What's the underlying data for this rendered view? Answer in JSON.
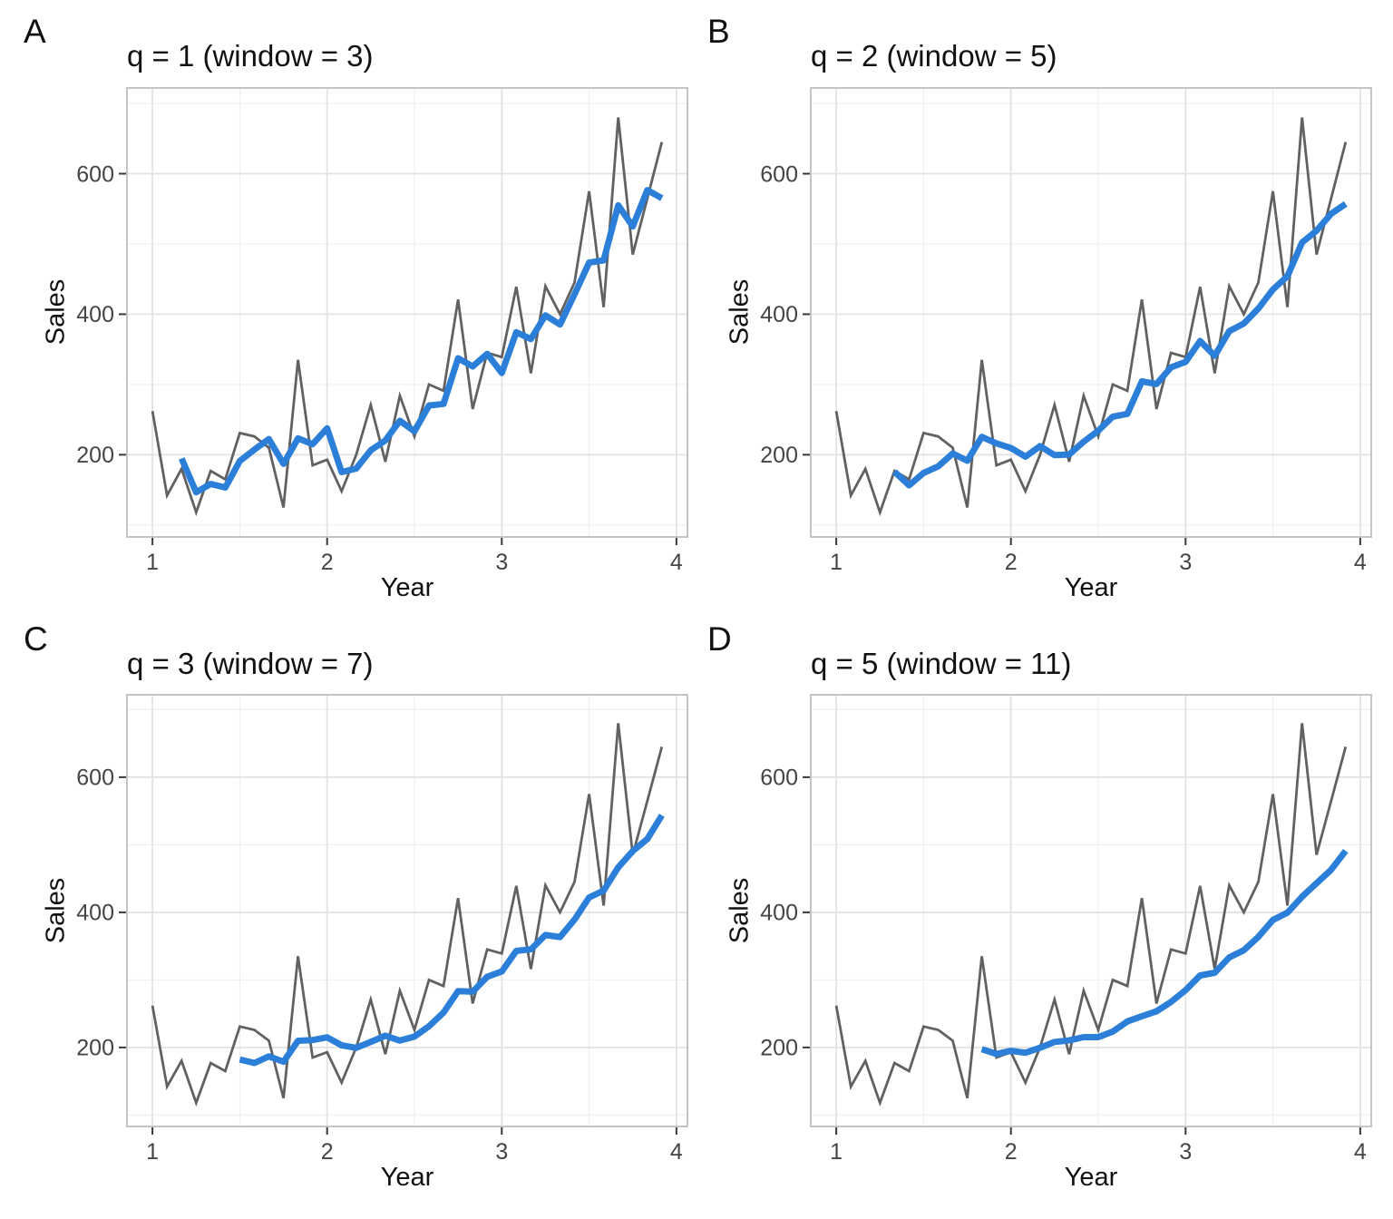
{
  "chart_data": {
    "type": "line",
    "description": "Four panels (A-D) showing the same monthly Sales series in gray with a blue trailing moving average of increasing window size",
    "xlabel": "Year",
    "ylabel": "Sales",
    "x_ticks": [
      1,
      2,
      3,
      4
    ],
    "x_minor_ticks": [
      1.5,
      2.5,
      3.5
    ],
    "y_ticks": [
      200,
      400,
      600
    ],
    "y_minor_ticks": [
      100,
      300,
      500,
      700
    ],
    "x_domain": [
      0.854,
      4.063
    ],
    "y_domain": [
      83,
      722
    ],
    "series_x_start": 1,
    "series_x_step_years": 0.0833333,
    "sales": [
      262,
      142,
      180,
      118,
      177,
      165,
      231,
      226,
      210,
      125,
      335,
      185,
      193,
      148,
      200,
      271,
      190,
      284,
      226,
      300,
      291,
      421,
      265,
      345,
      339,
      439,
      316,
      440,
      400,
      445,
      575,
      410,
      680,
      485,
      565,
      645
    ],
    "ma_type": "trailing",
    "panels": [
      {
        "label": "A",
        "title": "q = 1 (window = 3)",
        "q": 1,
        "window": 3
      },
      {
        "label": "B",
        "title": "q = 2 (window = 5)",
        "q": 2,
        "window": 5
      },
      {
        "label": "C",
        "title": "q = 3 (window = 7)",
        "q": 3,
        "window": 7
      },
      {
        "label": "D",
        "title": "q = 5 (window = 11)",
        "q": 5,
        "window": 11
      }
    ]
  },
  "colors": {
    "raw_line": "#616161",
    "ma_line": "#2B7FD9",
    "grid_major": "#E2E2E2",
    "grid_minor": "#F0F0F0",
    "panel_border": "#C4C4C4",
    "tick_mark": "#383838",
    "tick_label": "#454545",
    "text": "#111111",
    "background": "#FFFFFF"
  }
}
